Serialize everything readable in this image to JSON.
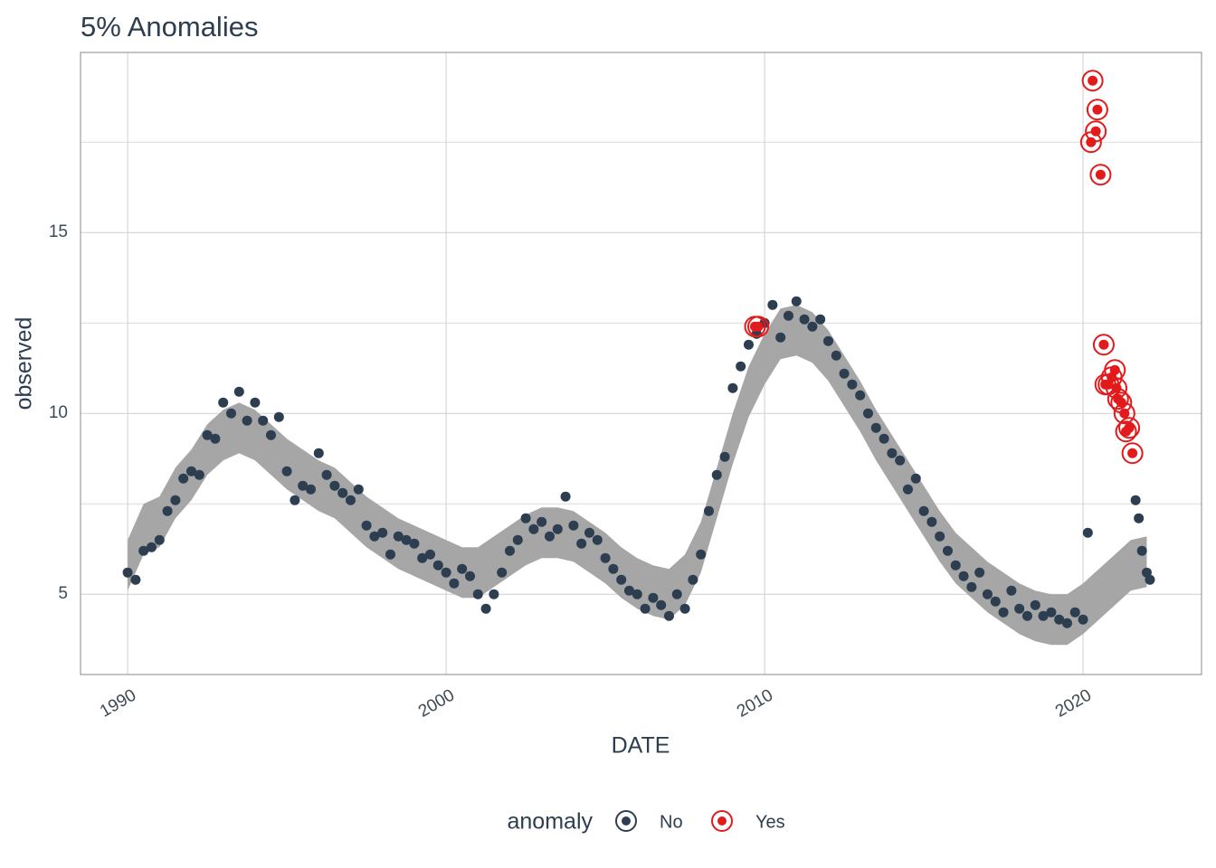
{
  "chart_data": {
    "type": "anomaly",
    "title": "5% Anomalies",
    "x_label": "DATE",
    "y_label": "observed",
    "legend_title": "anomaly",
    "xlim": [
      1988.52,
      2023.72
    ],
    "xticks": [
      1990,
      2000,
      2010,
      2020
    ],
    "ylim": [
      2.78,
      19.98
    ],
    "yticks": [
      5,
      10,
      15
    ],
    "yminor": [
      7.5,
      12.5,
      17.5
    ],
    "grid": true,
    "band": {
      "color": "#a6a6a6",
      "x": [
        1990,
        1990.5,
        1991,
        1991.5,
        1992,
        1992.5,
        1993,
        1993.5,
        1994,
        1994.5,
        1995,
        1995.5,
        1996,
        1996.5,
        1997,
        1997.5,
        1998,
        1998.5,
        1999,
        1999.5,
        2000,
        2000.5,
        2001,
        2001.5,
        2002,
        2002.5,
        2003,
        2003.5,
        2004,
        2004.5,
        2005,
        2005.5,
        2006,
        2006.5,
        2007,
        2007.5,
        2008,
        2008.5,
        2009,
        2009.5,
        2010,
        2010.5,
        2011,
        2011.5,
        2012,
        2012.5,
        2013,
        2013.5,
        2014,
        2014.5,
        2015,
        2015.5,
        2016,
        2016.5,
        2017,
        2017.5,
        2018,
        2018.5,
        2019,
        2019.5,
        2020,
        2020.5,
        2021,
        2021.5,
        2022
      ],
      "lower": [
        5.1,
        6.1,
        6.3,
        7.1,
        7.6,
        8.3,
        8.7,
        8.9,
        8.7,
        8.3,
        7.9,
        7.6,
        7.3,
        7.1,
        6.7,
        6.3,
        6.0,
        5.7,
        5.5,
        5.3,
        5.1,
        4.9,
        4.9,
        5.2,
        5.5,
        5.8,
        6.0,
        6.0,
        5.9,
        5.6,
        5.3,
        4.9,
        4.6,
        4.4,
        4.3,
        4.7,
        5.6,
        7.1,
        8.6,
        9.9,
        10.8,
        11.5,
        11.6,
        11.4,
        10.9,
        10.2,
        9.5,
        8.7,
        8.0,
        7.3,
        6.6,
        5.9,
        5.3,
        4.9,
        4.5,
        4.2,
        3.9,
        3.7,
        3.6,
        3.6,
        3.9,
        4.3,
        4.7,
        5.1,
        5.2
      ],
      "upper": [
        6.5,
        7.5,
        7.7,
        8.5,
        9.0,
        9.7,
        10.1,
        10.3,
        10.1,
        9.7,
        9.3,
        9.0,
        8.7,
        8.5,
        8.1,
        7.7,
        7.4,
        7.1,
        6.9,
        6.7,
        6.5,
        6.3,
        6.3,
        6.6,
        6.9,
        7.2,
        7.4,
        7.4,
        7.3,
        7.0,
        6.7,
        6.3,
        6.0,
        5.8,
        5.7,
        6.1,
        7.0,
        8.5,
        10.0,
        11.3,
        12.2,
        12.9,
        13.0,
        12.8,
        12.3,
        11.6,
        10.9,
        10.1,
        9.4,
        8.7,
        8.0,
        7.3,
        6.7,
        6.3,
        5.9,
        5.6,
        5.3,
        5.1,
        5.0,
        5.0,
        5.3,
        5.7,
        6.1,
        6.5,
        6.6
      ]
    },
    "series": [
      {
        "name": "No",
        "color": "#2c3e50",
        "ring": false,
        "x": [
          1990,
          1990.25,
          1990.5,
          1990.75,
          1991,
          1991.25,
          1991.5,
          1991.75,
          1992,
          1992.25,
          1992.5,
          1992.75,
          1993,
          1993.25,
          1993.5,
          1993.75,
          1994,
          1994.25,
          1994.5,
          1994.75,
          1995,
          1995.25,
          1995.5,
          1995.75,
          1996,
          1996.25,
          1996.5,
          1996.75,
          1997,
          1997.25,
          1997.5,
          1997.75,
          1998,
          1998.25,
          1998.5,
          1998.75,
          1999,
          1999.25,
          1999.5,
          1999.75,
          2000,
          2000.25,
          2000.5,
          2000.75,
          2001,
          2001.25,
          2001.5,
          2001.75,
          2002,
          2002.25,
          2002.5,
          2002.75,
          2003,
          2003.25,
          2003.5,
          2003.75,
          2004,
          2004.25,
          2004.5,
          2004.75,
          2005,
          2005.25,
          2005.5,
          2005.75,
          2006,
          2006.25,
          2006.5,
          2006.75,
          2007,
          2007.25,
          2007.5,
          2007.75,
          2008,
          2008.25,
          2008.5,
          2008.75,
          2009,
          2009.25,
          2009.5,
          2009.75,
          2010,
          2010.25,
          2010.5,
          2010.75,
          2011,
          2011.25,
          2011.5,
          2011.75,
          2012,
          2012.25,
          2012.5,
          2012.75,
          2013,
          2013.25,
          2013.5,
          2013.75,
          2014,
          2014.25,
          2014.5,
          2014.75,
          2015,
          2015.25,
          2015.5,
          2015.75,
          2016,
          2016.25,
          2016.5,
          2016.75,
          2017,
          2017.25,
          2017.5,
          2017.75,
          2018,
          2018.25,
          2018.5,
          2018.75,
          2019,
          2019.25,
          2019.5,
          2019.75,
          2020,
          2020.15,
          2021.65,
          2021.75,
          2021.85,
          2022,
          2022.1
        ],
        "values": [
          5.6,
          5.4,
          6.2,
          6.3,
          6.5,
          7.3,
          7.6,
          8.2,
          8.4,
          8.3,
          9.4,
          9.3,
          10.3,
          10.0,
          10.6,
          9.8,
          10.3,
          9.8,
          9.4,
          9.9,
          8.4,
          7.6,
          8.0,
          7.9,
          8.9,
          8.3,
          8.0,
          7.8,
          7.6,
          7.9,
          6.9,
          6.6,
          6.7,
          6.1,
          6.6,
          6.5,
          6.4,
          6.0,
          6.1,
          5.8,
          5.6,
          5.3,
          5.7,
          5.5,
          5.0,
          4.6,
          5.0,
          5.6,
          6.2,
          6.5,
          7.1,
          6.8,
          7.0,
          6.6,
          6.8,
          7.7,
          6.9,
          6.4,
          6.7,
          6.5,
          6.0,
          5.7,
          5.4,
          5.1,
          5.0,
          4.6,
          4.9,
          4.7,
          4.4,
          5.0,
          4.6,
          5.4,
          6.1,
          7.3,
          8.3,
          8.8,
          10.7,
          11.3,
          11.9,
          12.2,
          12.5,
          13.0,
          12.1,
          12.7,
          13.1,
          12.6,
          12.4,
          12.6,
          12.0,
          11.6,
          11.1,
          10.8,
          10.5,
          10.0,
          9.6,
          9.3,
          8.9,
          8.7,
          7.9,
          8.2,
          7.3,
          7.0,
          6.6,
          6.2,
          5.8,
          5.5,
          5.2,
          5.6,
          5.0,
          4.8,
          4.5,
          5.1,
          4.6,
          4.4,
          4.7,
          4.4,
          4.5,
          4.3,
          4.2,
          4.5,
          4.3,
          6.7,
          7.6,
          7.1,
          6.2,
          5.6,
          5.4
        ]
      },
      {
        "name": "Yes",
        "color": "#e31a1c",
        "ring": true,
        "x": [
          2009.7,
          2009.8,
          2020.25,
          2020.3,
          2020.4,
          2020.45,
          2020.55,
          2020.65,
          2020.7,
          2020.8,
          2020.9,
          2021.0,
          2021.05,
          2021.1,
          2021.2,
          2021.3,
          2021.35,
          2021.45,
          2021.55
        ],
        "values": [
          12.4,
          12.4,
          17.5,
          19.2,
          17.8,
          18.4,
          16.6,
          11.9,
          10.8,
          10.8,
          11.0,
          11.2,
          10.7,
          10.4,
          10.3,
          10.0,
          9.5,
          9.6,
          8.9
        ]
      }
    ]
  }
}
